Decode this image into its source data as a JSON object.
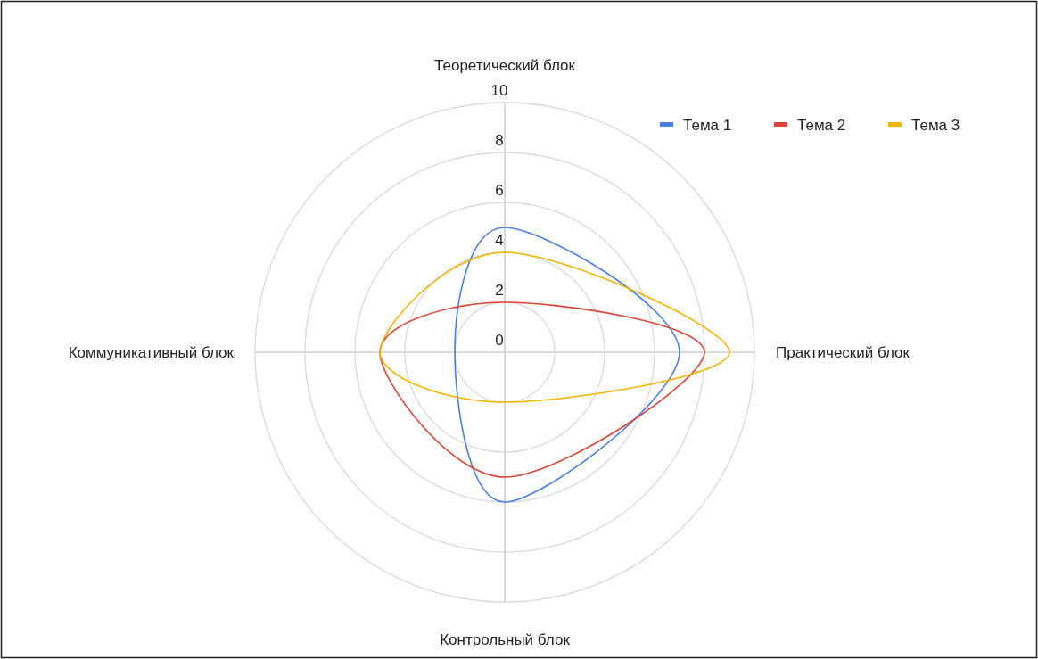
{
  "chart_data": {
    "type": "radar",
    "categories": [
      "Теоретический блок",
      "Практический блок",
      "Контрольный блок",
      "Коммуникативный блок"
    ],
    "series": [
      {
        "name": "Тема 1",
        "color": "#4a7fe0",
        "values": [
          5,
          7,
          6,
          2
        ]
      },
      {
        "name": "Тема 2",
        "color": "#db4437",
        "values": [
          2,
          8,
          5,
          5
        ]
      },
      {
        "name": "Тема 3",
        "color": "#f4b400",
        "values": [
          4,
          9,
          2,
          5
        ]
      }
    ],
    "ylim": [
      0,
      10
    ],
    "yticks": [
      0,
      2,
      4,
      6,
      8,
      10
    ],
    "grid": true,
    "legend": "top right"
  }
}
